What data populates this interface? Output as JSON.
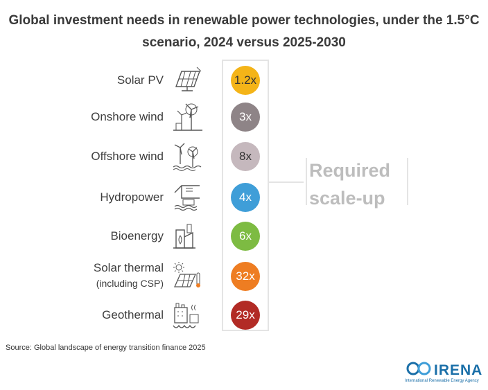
{
  "chart_data": {
    "type": "table",
    "title": "Global investment needs in renewable power technologies, under the 1.5°C scenario, 2024 versus 2025-2030",
    "rows": [
      {
        "label": "Solar PV",
        "sublabel": "",
        "icon": "solar-panel-icon",
        "value": "1.2x",
        "multiplier": 1.2,
        "color": "#f4b418"
      },
      {
        "label": "Onshore wind",
        "sublabel": "",
        "icon": "onshore-wind-icon",
        "value": "3x",
        "multiplier": 3,
        "color": "#8e8487"
      },
      {
        "label": "Offshore wind",
        "sublabel": "",
        "icon": "offshore-wind-icon",
        "value": "8x",
        "multiplier": 8,
        "color": "#c5b8bd"
      },
      {
        "label": "Hydropower",
        "sublabel": "",
        "icon": "hydropower-icon",
        "value": "4x",
        "multiplier": 4,
        "color": "#3f9ed8"
      },
      {
        "label": "Bioenergy",
        "sublabel": "",
        "icon": "bioenergy-icon",
        "value": "6x",
        "multiplier": 6,
        "color": "#7dbb42"
      },
      {
        "label": "Solar thermal",
        "sublabel": "(including CSP)",
        "icon": "solar-thermal-icon",
        "value": "32x",
        "multiplier": 32,
        "color": "#ee7d22"
      },
      {
        "label": "Geothermal",
        "sublabel": "",
        "icon": "geothermal-icon",
        "value": "29x",
        "multiplier": 29,
        "color": "#b22b25"
      }
    ],
    "bracket_label": "Required scale-up"
  },
  "source": "Source: Global landscape of energy transition finance 2025",
  "logo": {
    "name": "IRENA",
    "subtitle": "International Renewable Energy Agency",
    "color": "#1a6fa8"
  }
}
